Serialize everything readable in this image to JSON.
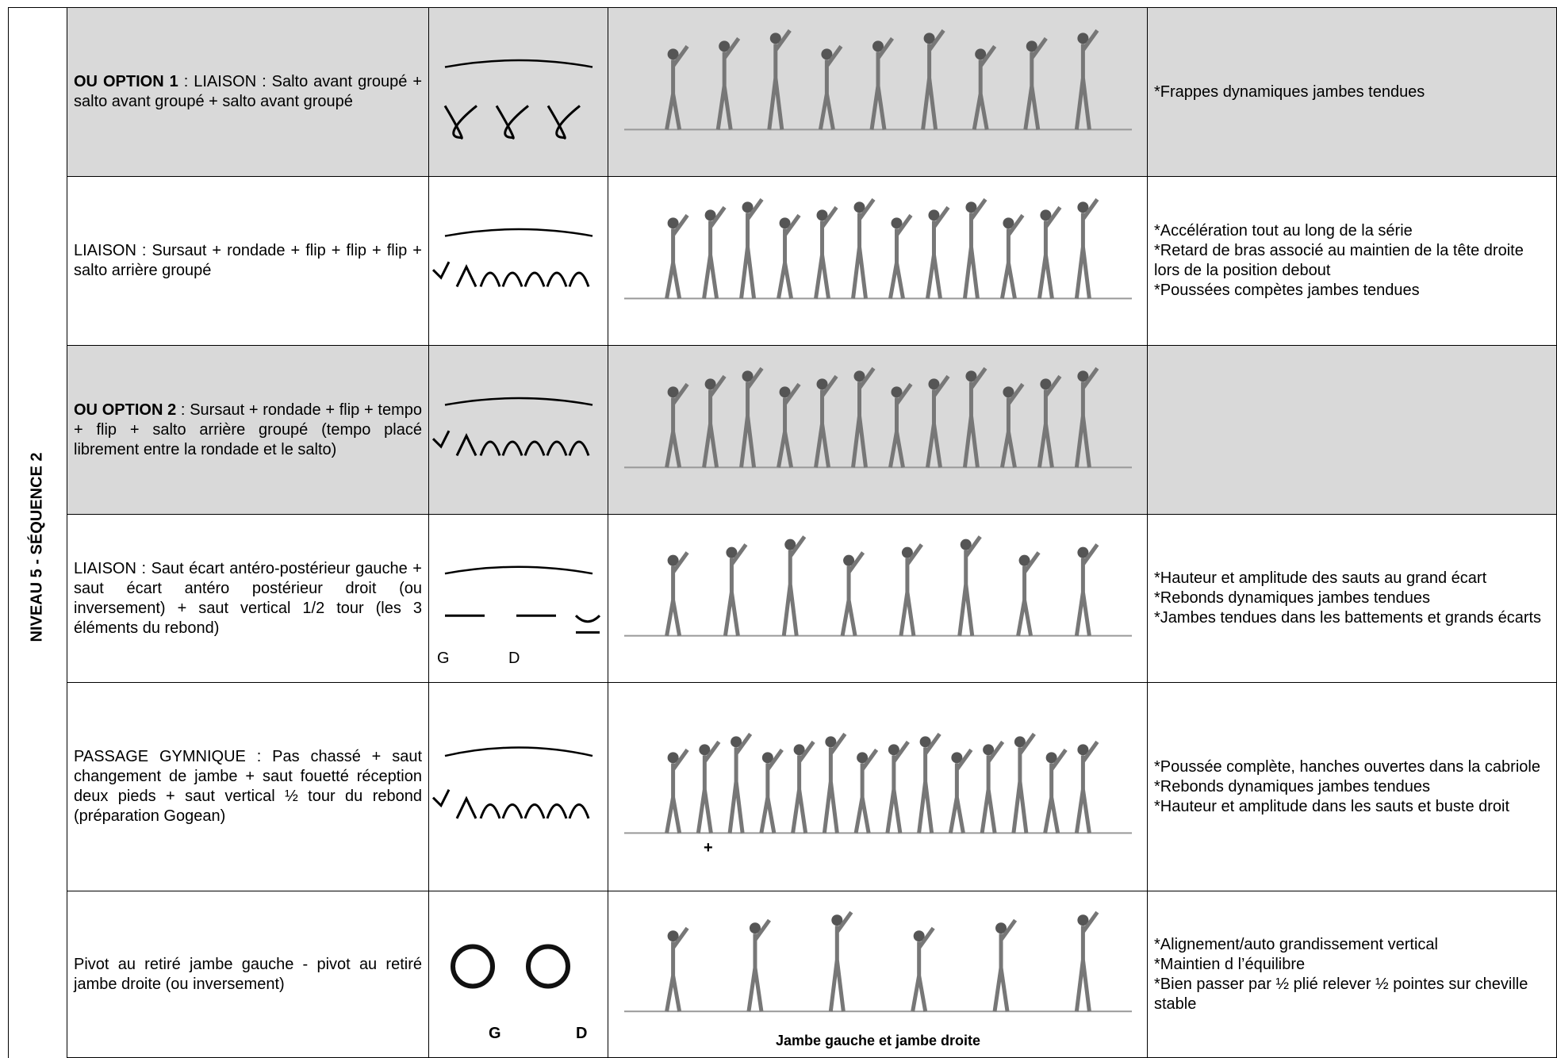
{
  "side_label": "NIVEAU 5 - SÉQUENCE 2",
  "rows": [
    {
      "background": "#d9d9d9",
      "bold": "OU OPTION 1",
      "text": " : LIAISON : Salto avant groupé + salto avant groupé + salto avant groupé",
      "criteria": [
        "*Frappes dynamiques jambes tendues"
      ]
    },
    {
      "background": "#ffffff",
      "text": "LIAISON : Sursaut + rondade + flip + flip + flip + salto arrière groupé",
      "criteria": [
        "*Accélération tout au long de la série",
        "*Retard de bras associé au maintien de la tête droite lors de la position debout",
        "*Poussées compètes jambes tendues"
      ]
    },
    {
      "background": "#d9d9d9",
      "bold": "OU OPTION 2",
      "text": " : Sursaut + rondade + flip + tempo + flip + salto arrière groupé (tempo placé librement entre la rondade et le salto)",
      "criteria": []
    },
    {
      "background": "#ffffff",
      "text": "LIAISON : Saut écart antéro-postérieur gauche + saut écart antéro postérieur droit (ou inversement) + saut vertical 1/2 tour (les 3 éléments du rebond)",
      "symbol_labels": [
        "G",
        "D"
      ],
      "criteria": [
        "*Hauteur et amplitude des sauts au grand écart",
        "*Rebonds dynamiques jambes tendues",
        "*Jambes tendues dans les battements et grands écarts"
      ]
    },
    {
      "background": "#ffffff",
      "text": "PASSAGE GYMNIQUE : Pas chassé + saut changement de jambe + saut fouetté réception deux pieds + saut vertical ½ tour du rebond (préparation Gogean)",
      "image_note": "+",
      "criteria": [
        "*Poussée complète, hanches ouvertes dans la cabriole",
        "*Rebonds dynamiques jambes tendues",
        "*Hauteur et amplitude dans les sauts et buste droit"
      ]
    },
    {
      "background": "#ffffff",
      "text": "Pivot au retiré jambe gauche - pivot au retiré jambe droite (ou inversement)",
      "symbol_labels": [
        "G",
        "D"
      ],
      "caption": "Jambe gauche et jambe droite",
      "criteria": [
        "*Alignement/auto grandissement vertical",
        "*Maintien d l’équilibre",
        "*Bien passer par ½ plié relever ½ pointes sur cheville stable"
      ]
    }
  ]
}
